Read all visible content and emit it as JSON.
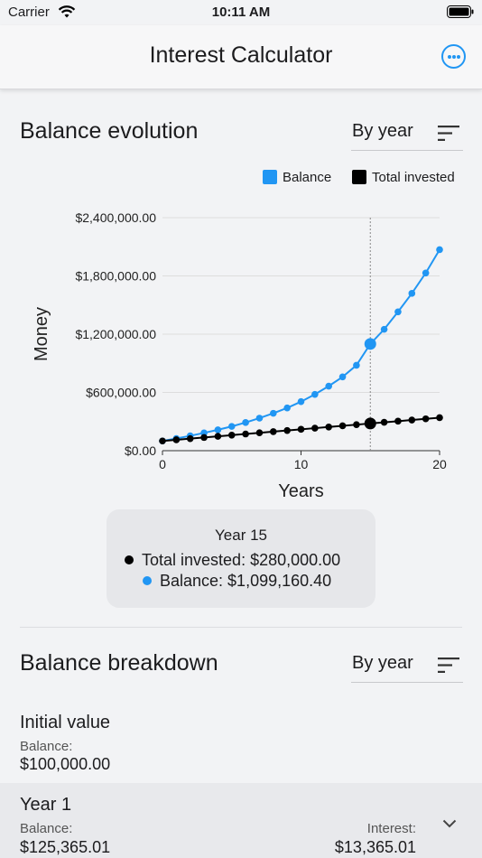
{
  "status_bar": {
    "carrier": "Carrier",
    "time": "10:11 AM"
  },
  "nav": {
    "title": "Interest Calculator"
  },
  "evolution": {
    "title": "Balance evolution",
    "period": "By year",
    "legend": {
      "balance": "Balance",
      "invested": "Total invested"
    },
    "ylabel": "Money",
    "xlabel": "Years",
    "tooltip": {
      "title": "Year 15",
      "invested": "Total invested: $280,000.00",
      "balance": "Balance: $1,099,160.40"
    }
  },
  "breakdown": {
    "title": "Balance breakdown",
    "period": "By year",
    "rows": [
      {
        "heading": "Initial value",
        "balance_label": "Balance:",
        "balance": "$100,000.00"
      },
      {
        "heading": "Year 1",
        "balance_label": "Balance:",
        "balance": "$125,365.01",
        "interest_label": "Interest:",
        "interest": "$13,365.01"
      }
    ]
  },
  "colors": {
    "accent": "#2196f3",
    "invested": "#000000",
    "grid": "#dddddd"
  },
  "chart_data": {
    "type": "line",
    "x": [
      0,
      1,
      2,
      3,
      4,
      5,
      6,
      7,
      8,
      9,
      10,
      11,
      12,
      13,
      14,
      15,
      16,
      17,
      18,
      19,
      20
    ],
    "series": [
      {
        "name": "Balance",
        "color": "#2196f3",
        "values": [
          100000,
          125365,
          153000,
          183000,
          215000,
          250000,
          290000,
          335000,
          385000,
          440000,
          505000,
          580000,
          665000,
          760000,
          880000,
          1099160,
          1250000,
          1430000,
          1620000,
          1830000,
          2070000
        ]
      },
      {
        "name": "Total invested",
        "color": "#000000",
        "values": [
          100000,
          112000,
          124000,
          136000,
          148000,
          160000,
          172000,
          184000,
          196000,
          208000,
          220000,
          232000,
          244000,
          256000,
          268000,
          280000,
          292000,
          304000,
          316000,
          328000,
          340000
        ]
      }
    ],
    "xticks": [
      0,
      10,
      20
    ],
    "yticks": [
      "$0.00",
      "$600,000.00",
      "$1,200,000.00",
      "$1,800,000.00",
      "$2,400,000.00"
    ],
    "ytick_values": [
      0,
      600000,
      1200000,
      1800000,
      2400000
    ],
    "ylim": [
      0,
      2400000
    ],
    "xlim": [
      0,
      20
    ],
    "highlight_x": 15,
    "xlabel": "Years",
    "ylabel": "Money",
    "legend": "top-right",
    "grid": true
  }
}
